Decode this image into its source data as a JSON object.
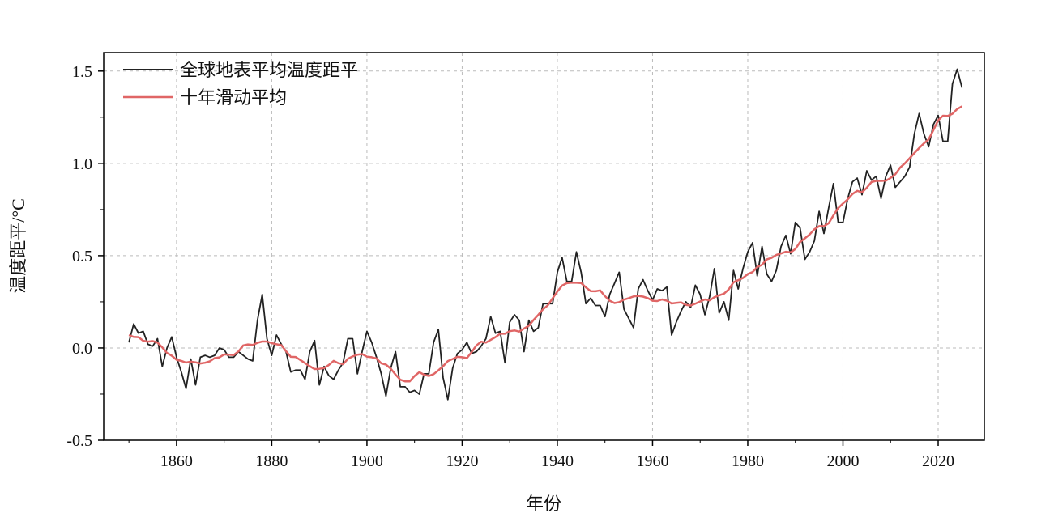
{
  "chart_data": {
    "type": "line",
    "xlabel": "年份",
    "ylabel": "温度距平/°C",
    "xlim": [
      1844.7,
      2029.7
    ],
    "ylim": [
      -0.5,
      1.6
    ],
    "xticks": [
      1860,
      1880,
      1900,
      1920,
      1940,
      1960,
      1980,
      2000,
      2020
    ],
    "yticks": [
      -0.5,
      0.0,
      0.5,
      1.0,
      1.5
    ],
    "ytick_labels": [
      "-0.5",
      "0.0",
      "0.5",
      "1.0",
      "1.5"
    ],
    "grid": true,
    "legend_position": "top-left",
    "x_start": 1850,
    "series": [
      {
        "name": "全球地表平均温度距平",
        "color": "#222222",
        "values": [
          0.03,
          0.13,
          0.08,
          0.09,
          0.02,
          0.01,
          0.05,
          -0.1,
          0.0,
          0.06,
          -0.05,
          -0.13,
          -0.22,
          -0.06,
          -0.2,
          -0.05,
          -0.04,
          -0.05,
          -0.04,
          0.0,
          -0.01,
          -0.05,
          -0.05,
          -0.02,
          -0.04,
          -0.06,
          -0.07,
          0.15,
          0.29,
          0.05,
          -0.04,
          0.07,
          0.02,
          -0.02,
          -0.13,
          -0.12,
          -0.12,
          -0.17,
          -0.02,
          0.04,
          -0.2,
          -0.1,
          -0.15,
          -0.17,
          -0.12,
          -0.08,
          0.05,
          0.05,
          -0.14,
          -0.02,
          0.09,
          0.03,
          -0.05,
          -0.14,
          -0.26,
          -0.11,
          -0.02,
          -0.21,
          -0.21,
          -0.24,
          -0.23,
          -0.25,
          -0.14,
          -0.14,
          0.03,
          0.1,
          -0.16,
          -0.28,
          -0.11,
          -0.03,
          -0.01,
          0.03,
          -0.03,
          -0.02,
          0.01,
          0.05,
          0.17,
          0.08,
          0.09,
          -0.08,
          0.14,
          0.18,
          0.15,
          -0.02,
          0.15,
          0.09,
          0.11,
          0.24,
          0.24,
          0.24,
          0.41,
          0.49,
          0.36,
          0.36,
          0.52,
          0.41,
          0.24,
          0.27,
          0.23,
          0.23,
          0.17,
          0.29,
          0.35,
          0.41,
          0.21,
          0.16,
          0.11,
          0.32,
          0.37,
          0.31,
          0.26,
          0.32,
          0.31,
          0.33,
          0.07,
          0.14,
          0.2,
          0.25,
          0.22,
          0.34,
          0.29,
          0.18,
          0.28,
          0.43,
          0.19,
          0.25,
          0.15,
          0.42,
          0.32,
          0.43,
          0.52,
          0.57,
          0.39,
          0.55,
          0.4,
          0.36,
          0.42,
          0.55,
          0.61,
          0.51,
          0.68,
          0.65,
          0.48,
          0.52,
          0.58,
          0.74,
          0.62,
          0.76,
          0.89,
          0.68,
          0.68,
          0.81,
          0.9,
          0.92,
          0.83,
          0.96,
          0.91,
          0.93,
          0.81,
          0.93,
          0.99,
          0.87,
          0.9,
          0.93,
          0.98,
          1.16,
          1.27,
          1.16,
          1.09,
          1.21,
          1.26,
          1.12,
          1.12,
          1.43,
          1.51,
          1.41
        ]
      },
      {
        "name": "十年滑动平均",
        "color": "#e06666",
        "moving_average_window": 10
      }
    ]
  }
}
